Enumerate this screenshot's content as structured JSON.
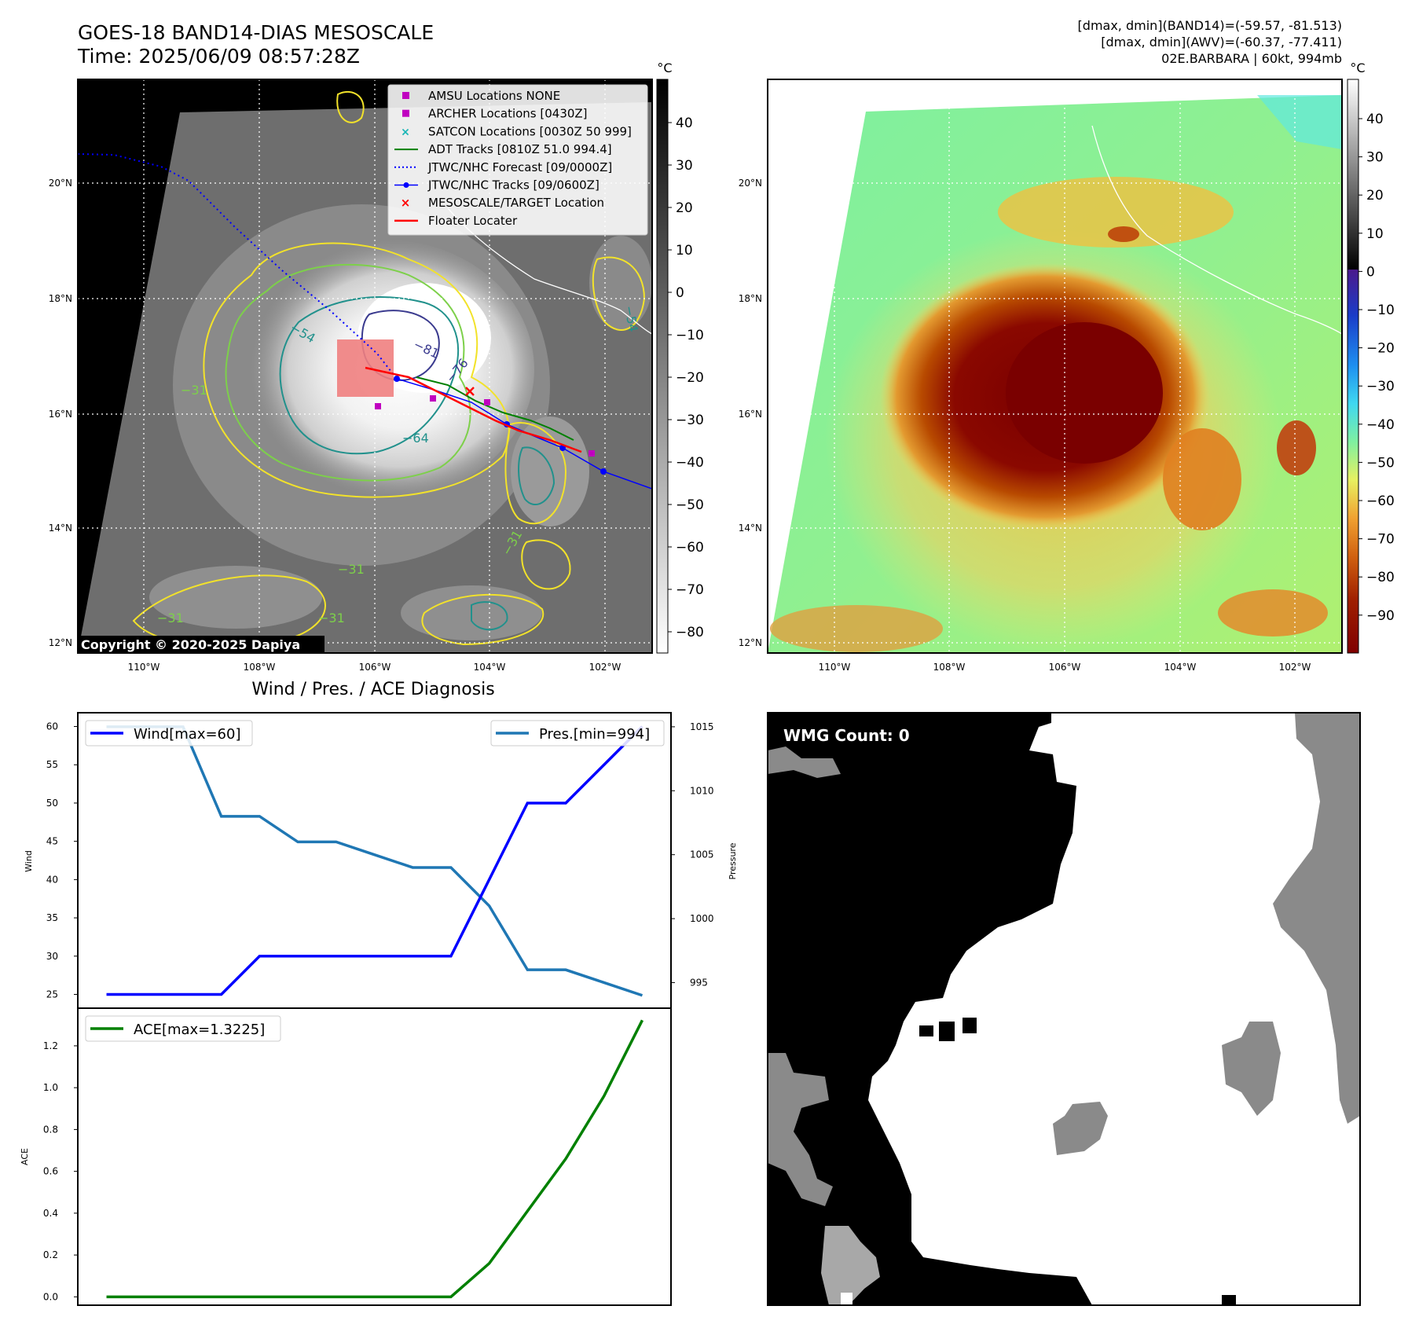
{
  "header": {
    "title": "GOES-18 BAND14-DIAS MESOSCALE",
    "time": "Time: 2025/06/09 08:57:28Z",
    "dmax_band14": "[dmax, dmin](BAND14)=(-59.57, -81.513)",
    "dmax_awv": "[dmax, dmin](AWV)=(-60.37, -77.411)",
    "storm": "02E.BARBARA | 60kt, 994mb"
  },
  "map_axes": {
    "lat_labels": [
      "20°N",
      "18°N",
      "16°N",
      "14°N",
      "12°N"
    ],
    "lon_labels": [
      "110°W",
      "108°W",
      "106°W",
      "104°W",
      "102°W"
    ]
  },
  "ir_colorbar": {
    "unit": "°C",
    "ticks": [
      "40",
      "30",
      "20",
      "10",
      "0",
      "−10",
      "−20",
      "−30",
      "−40",
      "−50",
      "−60",
      "−70",
      "−80"
    ]
  },
  "awv_colorbar": {
    "unit": "°C",
    "ticks": [
      "40",
      "30",
      "20",
      "10",
      "0",
      "−10",
      "−20",
      "−30",
      "−40",
      "−50",
      "−60",
      "−70",
      "−80",
      "−90"
    ]
  },
  "legend": [
    {
      "label": "AMSU Locations NONE",
      "color": "#c000c0"
    },
    {
      "label": "ARCHER Locations [0430Z]",
      "color": "#c000c0"
    },
    {
      "label": "SATCON Locations [0030Z 50 999]",
      "color": "#17b5b5"
    },
    {
      "label": "ADT Tracks [0810Z 51.0 994.4]",
      "color": "#008000"
    },
    {
      "label": "JTWC/NHC Forecast [09/0000Z]",
      "color": "#0000ff"
    },
    {
      "label": "JTWC/NHC Tracks [09/0600Z]",
      "color": "#0000ff"
    },
    {
      "label": "MESOSCALE/TARGET Location",
      "color": "#ff0000"
    },
    {
      "label": "Floater Locater",
      "color": "#ff0000"
    }
  ],
  "contour_labels": [
    "−81",
    "−76",
    "−64",
    "−54",
    "−31",
    "−31",
    "−31",
    "−31",
    "−31",
    "−54"
  ],
  "copyright": "Copyright © 2020-2025 Dapiya",
  "diagnosis": {
    "title": "Wind / Pres. / ACE Diagnosis",
    "wind_ylabel": "Wind",
    "pres_ylabel": "Pressure",
    "ace_ylabel": "ACE",
    "wind_legend": "Wind[max=60]",
    "pres_legend": "Pres.[min=994]",
    "ace_legend": "ACE[max=1.3225]"
  },
  "wmg": {
    "label": "WMG Count: 0"
  },
  "colors": {
    "wind": "#0000ff",
    "pres": "#1f77b4",
    "ace": "#008000",
    "contour_yellow": "#f2e22a",
    "contour_green": "#7dd04a",
    "contour_teal": "#21918c",
    "contour_indigo": "#3b3b8f"
  },
  "chart_data": [
    {
      "type": "line",
      "name": "wind-pressure",
      "x": [
        0,
        1,
        2,
        3,
        4,
        5,
        6,
        7,
        8,
        9,
        10,
        11,
        12,
        13,
        14
      ],
      "series": [
        {
          "name": "Wind[max=60]",
          "axis": "left",
          "values": [
            25,
            25,
            25,
            25,
            30,
            30,
            30,
            30,
            30,
            30,
            40,
            50,
            50,
            55,
            60
          ]
        },
        {
          "name": "Pres.[min=994]",
          "axis": "right",
          "values": [
            1015,
            1015,
            1015,
            1008,
            1008,
            1006,
            1006,
            1005,
            1004,
            1004,
            1001,
            996,
            996,
            995,
            994
          ]
        }
      ],
      "ylim_left": [
        23.2,
        61.8
      ],
      "yticks_left": [
        25,
        30,
        35,
        40,
        45,
        50,
        55,
        60
      ],
      "ylim_right": [
        993.0,
        1016.1
      ],
      "yticks_right": [
        995,
        1000,
        1005,
        1010,
        1015
      ],
      "ylabel_left": "Wind",
      "ylabel_right": "Pressure"
    },
    {
      "type": "line",
      "name": "ace",
      "x": [
        0,
        1,
        2,
        3,
        4,
        5,
        6,
        7,
        8,
        9,
        10,
        11,
        12,
        13,
        14
      ],
      "series": [
        {
          "name": "ACE[max=1.3225]",
          "values": [
            0,
            0,
            0,
            0,
            0,
            0,
            0,
            0,
            0,
            0,
            0.16,
            0.41,
            0.66,
            0.96,
            1.3225
          ]
        }
      ],
      "ylim": [
        -0.04,
        1.38
      ],
      "yticks": [
        "0.0",
        "0.2",
        "0.4",
        "0.6",
        "0.8",
        "1.0",
        "1.2"
      ],
      "ylabel": "ACE"
    }
  ]
}
